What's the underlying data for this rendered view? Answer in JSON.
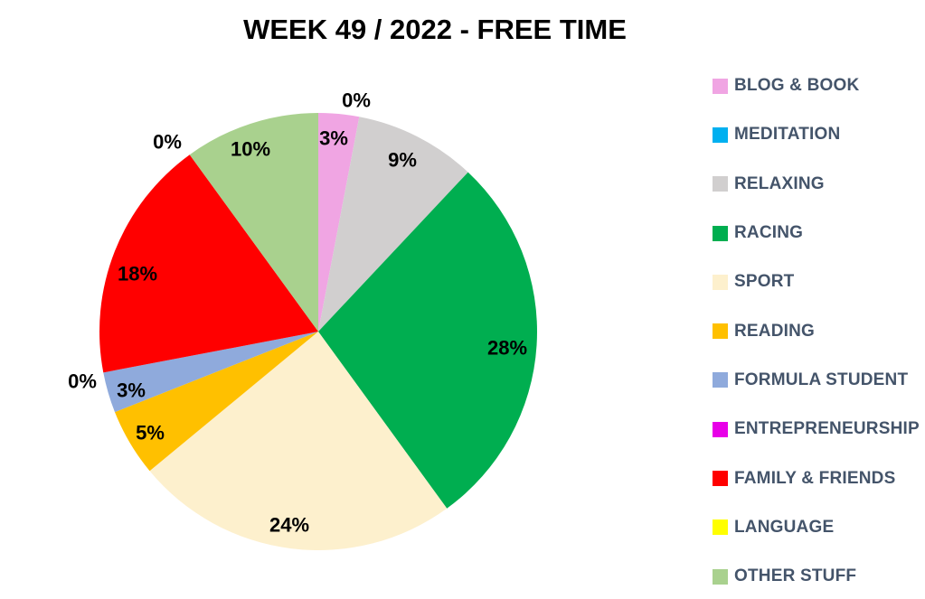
{
  "chart_data": {
    "type": "pie",
    "title": "WEEK 49 / 2022 - FREE TIME",
    "categories": [
      "BLOG & BOOK",
      "MEDITATION",
      "RELAXING",
      "RACING",
      "SPORT",
      "READING",
      "FORMULA STUDENT",
      "ENTREPRENEURSHIP",
      "FAMILY & FRIENDS",
      "LANGUAGE",
      "OTHER STUFF"
    ],
    "values": [
      3,
      0,
      9,
      28,
      24,
      5,
      3,
      0,
      18,
      0,
      10
    ],
    "point_labels": [
      "3%",
      "0%",
      "9%",
      "28%",
      "24%",
      "5%",
      "3%",
      "0%",
      "18%",
      "0%",
      "10%"
    ],
    "colors": [
      "#F0A5E3",
      "#00B0F0",
      "#D1CFCF",
      "#00AE50",
      "#FDF0CD",
      "#FFC000",
      "#8FAADC",
      "#E800E8",
      "#FF0000",
      "#FFFF00",
      "#A9D18E"
    ],
    "start_angle_deg": 0,
    "direction": "clockwise",
    "units": "percent",
    "legend_position": "right",
    "legend_text_color": "#44546A",
    "label_color": "#000000",
    "background_color": "#FFFFFF"
  }
}
